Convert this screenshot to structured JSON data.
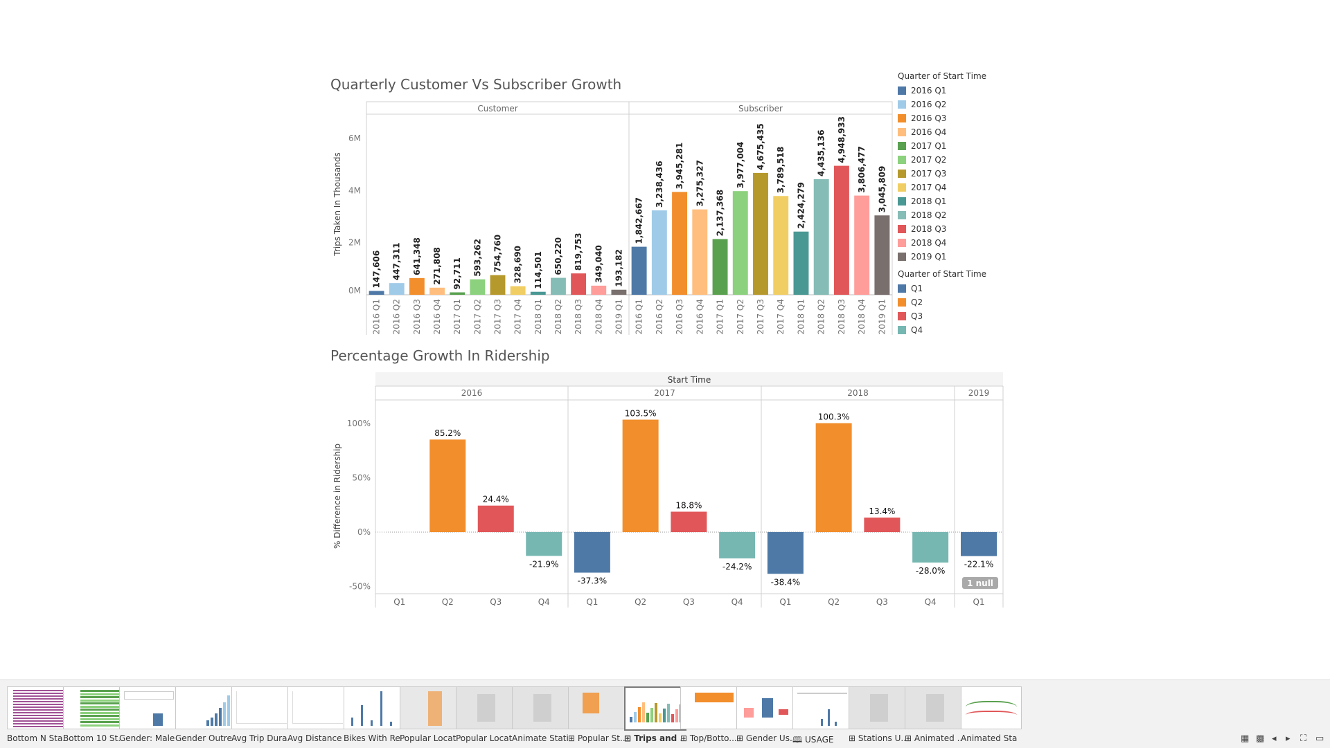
{
  "titles": {
    "chart1": "Quarterly Customer Vs Subscriber Growth",
    "chart2": "Percentage Growth In Ridership"
  },
  "legend1": {
    "title": "Quarter of Start Time",
    "items": [
      {
        "label": "2016 Q1",
        "color": "#4e79a7"
      },
      {
        "label": "2016 Q2",
        "color": "#a0cbe8"
      },
      {
        "label": "2016 Q3",
        "color": "#f28e2b"
      },
      {
        "label": "2016 Q4",
        "color": "#ffbe7d"
      },
      {
        "label": "2017 Q1",
        "color": "#59a14f"
      },
      {
        "label": "2017 Q2",
        "color": "#8cd17d"
      },
      {
        "label": "2017 Q3",
        "color": "#b6992d"
      },
      {
        "label": "2017 Q4",
        "color": "#f1ce63"
      },
      {
        "label": "2018 Q1",
        "color": "#499894"
      },
      {
        "label": "2018 Q2",
        "color": "#86bcb6"
      },
      {
        "label": "2018 Q3",
        "color": "#e15759"
      },
      {
        "label": "2018 Q4",
        "color": "#ff9d9a"
      },
      {
        "label": "2019 Q1",
        "color": "#79706e"
      }
    ]
  },
  "legend2": {
    "title": "Quarter of Start Time",
    "items": [
      {
        "label": "Q1",
        "color": "#4e79a7"
      },
      {
        "label": "Q2",
        "color": "#f28e2b"
      },
      {
        "label": "Q3",
        "color": "#e15759"
      },
      {
        "label": "Q4",
        "color": "#76b7b2"
      }
    ]
  },
  "chart_data": [
    {
      "type": "bar",
      "title": "Quarterly Customer Vs Subscriber Growth",
      "ylabel": "Trips Taken In Thousands",
      "yticks": [
        "0M",
        "2M",
        "4M",
        "6M"
      ],
      "ylim": [
        0,
        6000000
      ],
      "panels": [
        "Customer",
        "Subscriber"
      ],
      "categories": [
        "2016 Q1",
        "2016 Q2",
        "2016 Q3",
        "2016 Q4",
        "2017 Q1",
        "2017 Q2",
        "2017 Q3",
        "2017 Q4",
        "2018 Q1",
        "2018 Q2",
        "2018 Q3",
        "2018 Q4",
        "2019 Q1"
      ],
      "series": [
        {
          "name": "Customer",
          "values": [
            147606,
            447311,
            641348,
            271808,
            92711,
            593262,
            754760,
            328690,
            114501,
            650220,
            819753,
            349040,
            193182
          ],
          "labels": [
            "147,606",
            "447,311",
            "641,348",
            "271,808",
            "92,711",
            "593,262",
            "754,760",
            "328,690",
            "114,501",
            "650,220",
            "819,753",
            "349,040",
            "193,182"
          ]
        },
        {
          "name": "Subscriber",
          "values": [
            1842667,
            3238436,
            3945281,
            3275327,
            2137368,
            3977004,
            4675435,
            3789518,
            2424279,
            4435136,
            4948933,
            3806477,
            3045809
          ],
          "labels": [
            "1,842,667",
            "3,238,436",
            "3,945,281",
            "3,275,327",
            "2,137,368",
            "3,977,004",
            "4,675,435",
            "3,789,518",
            "2,424,279",
            "4,435,136",
            "4,948,933",
            "3,806,477",
            "3,045,809"
          ]
        }
      ],
      "legend": "right"
    },
    {
      "type": "bar",
      "title": "Percentage Growth In Ridership",
      "column_header": "Start Time",
      "ylabel": "% Difference in Ridership",
      "yticks": [
        "-50%",
        "0%",
        "50%",
        "100%"
      ],
      "ylim": [
        -50,
        100
      ],
      "groups": [
        {
          "year": "2016",
          "quarters": [
            "Q1",
            "Q2",
            "Q3",
            "Q4"
          ],
          "values": [
            null,
            85.2,
            24.4,
            -21.9
          ],
          "labels": [
            "",
            "85.2%",
            "24.4%",
            "-21.9%"
          ]
        },
        {
          "year": "2017",
          "quarters": [
            "Q1",
            "Q2",
            "Q3",
            "Q4"
          ],
          "values": [
            -37.3,
            103.5,
            18.8,
            -24.2
          ],
          "labels": [
            "-37.3%",
            "103.5%",
            "18.8%",
            "-24.2%"
          ]
        },
        {
          "year": "2018",
          "quarters": [
            "Q1",
            "Q2",
            "Q3",
            "Q4"
          ],
          "values": [
            -38.4,
            100.3,
            13.4,
            -28.0
          ],
          "labels": [
            "-38.4%",
            "100.3%",
            "13.4%",
            "-28.0%"
          ]
        },
        {
          "year": "2019",
          "quarters": [
            "Q1"
          ],
          "values": [
            -22.1
          ],
          "labels": [
            "-22.1%"
          ]
        }
      ],
      "null_badge": "1 null",
      "legend": "right"
    }
  ],
  "tabs": [
    {
      "label": "Bottom N Sta...",
      "thumb": "purple-rows"
    },
    {
      "label": "Bottom 10 St...",
      "thumb": "green-rows"
    },
    {
      "label": "Gender: Male ...",
      "thumb": "table-bar"
    },
    {
      "label": "Gender Outre...",
      "thumb": "rising-bars"
    },
    {
      "label": "Avg Trip Dura...",
      "thumb": "blank-grid"
    },
    {
      "label": "Avg Distance ...",
      "thumb": "blank-grid"
    },
    {
      "label": "Bikes With Re...",
      "thumb": "tall-bars"
    },
    {
      "label": "Popular Locat...",
      "thumb": "map-dots"
    },
    {
      "label": "Popular Locat...",
      "thumb": "map-gray"
    },
    {
      "label": "Animate Stati...",
      "thumb": "map-gray"
    },
    {
      "label": "⊞ Popular St...",
      "thumb": "map-orange"
    },
    {
      "label": "⊞ Trips and ...",
      "thumb": "multi-bars",
      "active": true
    },
    {
      "label": "⊞ Top/Botto...",
      "thumb": "orange-area"
    },
    {
      "label": "⊞ Gender Us...",
      "thumb": "gender-bars"
    },
    {
      "label": "🕮 USAGE",
      "thumb": "usage"
    },
    {
      "label": "⊞ Stations U...",
      "thumb": "map-gray"
    },
    {
      "label": "⊞ Animated ...",
      "thumb": "map-gray"
    },
    {
      "label": "Animated Sta...",
      "thumb": "line-chart"
    }
  ],
  "controls": {
    "grid_icon": "▦",
    "film_icon": "▩",
    "prev_icon": "◂",
    "next_icon": "▸",
    "fullscreen_icon": "⛶",
    "present_icon": "▭"
  }
}
